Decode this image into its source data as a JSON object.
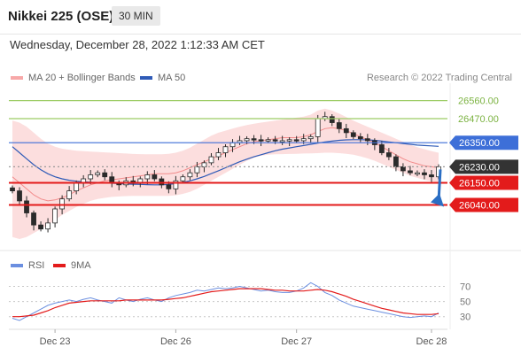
{
  "header": {
    "title": "Nikkei 225 (OSE)",
    "timeframe": "30 MIN"
  },
  "subheader": {
    "datetime": "Wednesday, December 28, 2022 1:12:33 AM CET"
  },
  "credit": "Research © 2022 Trading Central",
  "colors": {
    "support": "#e31b1b",
    "resistance": "#9ccc65",
    "pivot": "#3d6fd8",
    "last": "#333333",
    "ma20": "#f28b8b",
    "bands": "#fbd3d3",
    "ma50": "#2f5bb7",
    "bull": "#2e7d32",
    "bear": "#1b5e20",
    "rsi": "#6b8fe0",
    "rsi_ma": "#e31b1b",
    "arrow": "#2a6ec4"
  },
  "chart_data": [
    {
      "type": "line",
      "subtype": "candlestick",
      "xlabel": "",
      "ylabel": "",
      "x_tick_labels": [
        "Dec 23",
        "Dec 26",
        "Dec 27",
        "Dec 28"
      ],
      "ylim": [
        25870,
        26620
      ],
      "legend": [
        {
          "name": "MA 20 + Bollinger Bands",
          "color": "#f28b8b"
        },
        {
          "name": "MA 50",
          "color": "#2f5bb7"
        }
      ],
      "levels": [
        {
          "value": 26560,
          "label": "26560.00",
          "kind": "resistance"
        },
        {
          "value": 26470,
          "label": "26470.00",
          "kind": "resistance"
        },
        {
          "value": 26350,
          "label": "26350.00",
          "kind": "pivot"
        },
        {
          "value": 26230,
          "label": "26230.00",
          "kind": "last"
        },
        {
          "value": 26150,
          "label": "26150.00",
          "kind": "support"
        },
        {
          "value": 26040,
          "label": "26040.00",
          "kind": "support"
        }
      ],
      "forecast": {
        "from": 26230,
        "to": 26040
      },
      "series": [
        {
          "name": "Price",
          "values": [
            26110,
            26060,
            26000,
            25940,
            25920,
            25950,
            26020,
            26070,
            26110,
            26150,
            26170,
            26190,
            26200,
            26180,
            26150,
            26140,
            26160,
            26150,
            26170,
            26190,
            26170,
            26140,
            26120,
            26160,
            26180,
            26200,
            26230,
            26250,
            26280,
            26300,
            26330,
            26350,
            26360,
            26370,
            26365,
            26360,
            26365,
            26360,
            26360,
            26365,
            26360,
            26370,
            26380,
            26470,
            26480,
            26450,
            26420,
            26400,
            26380,
            26370,
            26360,
            26340,
            26300,
            26280,
            26230,
            26210,
            26200,
            26200,
            26190,
            26180,
            26230
          ]
        },
        {
          "name": "MA 20",
          "values": [
            26180,
            26150,
            26120,
            26090,
            26070,
            26060,
            26065,
            26075,
            26090,
            26110,
            26125,
            26140,
            26150,
            26160,
            26165,
            26170,
            26175,
            26180,
            26185,
            26190,
            26195,
            26195,
            26195,
            26200,
            26210,
            26225,
            26240,
            26255,
            26270,
            26285,
            26300,
            26315,
            26330,
            26345,
            26355,
            26360,
            26365,
            26370,
            26375,
            26375,
            26375,
            26380,
            26390,
            26405,
            26420,
            26425,
            26420,
            26410,
            26395,
            26380,
            26365,
            26350,
            26330,
            26310,
            26290,
            26270,
            26255,
            26245,
            26235,
            26230,
            26225
          ]
        },
        {
          "name": "MA 50",
          "values": [
            26330,
            26300,
            26270,
            26240,
            26215,
            26195,
            26180,
            26170,
            26163,
            26158,
            26155,
            26153,
            26152,
            26150,
            26148,
            26146,
            26144,
            26143,
            26142,
            26141,
            26140,
            26140,
            26142,
            26146,
            26152,
            26160,
            26170,
            26182,
            26196,
            26210,
            26225,
            26240,
            26255,
            26268,
            26280,
            26290,
            26300,
            26310,
            26318,
            26324,
            26330,
            26336,
            26342,
            26348,
            26354,
            26358,
            26362,
            26364,
            26365,
            26365,
            26364,
            26362,
            26358,
            26354,
            26350,
            26346,
            26342,
            26338,
            26336,
            26334,
            26332
          ]
        },
        {
          "name": "Upper Band",
          "values": [
            26460,
            26450,
            26430,
            26400,
            26370,
            26345,
            26330,
            26320,
            26315,
            26310,
            26308,
            26306,
            26304,
            26302,
            26300,
            26298,
            26296,
            26294,
            26293,
            26292,
            26292,
            26292,
            26295,
            26300,
            26310,
            26325,
            26345,
            26365,
            26385,
            26400,
            26410,
            26420,
            26430,
            26438,
            26445,
            26450,
            26455,
            26460,
            26465,
            26470,
            26475,
            26480,
            26490,
            26510,
            26520,
            26510,
            26495,
            26478,
            26460,
            26445,
            26430,
            26415,
            26400,
            26385,
            26370,
            26355,
            26340,
            26328,
            26318,
            26308,
            26300
          ]
        },
        {
          "name": "Lower Band",
          "values": [
            25880,
            25870,
            25880,
            25900,
            25920,
            25940,
            25965,
            25990,
            26010,
            26030,
            26045,
            26060,
            26070,
            26075,
            26080,
            26082,
            26084,
            26085,
            26085,
            26085,
            26085,
            26085,
            26085,
            26088,
            26095,
            26105,
            26120,
            26140,
            26160,
            26180,
            26200,
            26220,
            26240,
            26260,
            26275,
            26285,
            26290,
            26292,
            26293,
            26294,
            26295,
            26296,
            26297,
            26298,
            26300,
            26300,
            26298,
            26295,
            26290,
            26282,
            26272,
            26260,
            26245,
            26230,
            26215,
            26200,
            26185,
            26175,
            26165,
            26158,
            26150
          ]
        }
      ]
    },
    {
      "type": "line",
      "title": "",
      "ylim": [
        18,
        80
      ],
      "y_tick_labels": [
        "70",
        "50",
        "30"
      ],
      "legend": [
        {
          "name": "RSI",
          "color": "#6b8fe0"
        },
        {
          "name": "9MA",
          "color": "#e31b1b"
        }
      ],
      "series": [
        {
          "name": "RSI",
          "values": [
            28,
            25,
            30,
            35,
            40,
            45,
            48,
            50,
            52,
            50,
            53,
            55,
            52,
            50,
            48,
            55,
            52,
            50,
            53,
            55,
            52,
            50,
            55,
            58,
            60,
            62,
            65,
            64,
            66,
            68,
            67,
            68,
            70,
            68,
            66,
            64,
            65,
            63,
            62,
            62,
            64,
            68,
            75,
            70,
            62,
            58,
            52,
            48,
            44,
            42,
            40,
            38,
            36,
            34,
            32,
            30,
            29,
            30,
            31,
            30,
            35
          ]
        },
        {
          "name": "9MA",
          "values": [
            30,
            30,
            31,
            32,
            35,
            38,
            42,
            45,
            48,
            49,
            50,
            51,
            51,
            51,
            51,
            51,
            52,
            52,
            52,
            52,
            52,
            52,
            53,
            54,
            55,
            57,
            59,
            61,
            63,
            64,
            65,
            66,
            67,
            67,
            67,
            67,
            66,
            65,
            65,
            64,
            64,
            64,
            65,
            66,
            65,
            63,
            60,
            57,
            53,
            50,
            47,
            44,
            41,
            39,
            37,
            35,
            34,
            33,
            33,
            33,
            34
          ]
        }
      ]
    }
  ]
}
